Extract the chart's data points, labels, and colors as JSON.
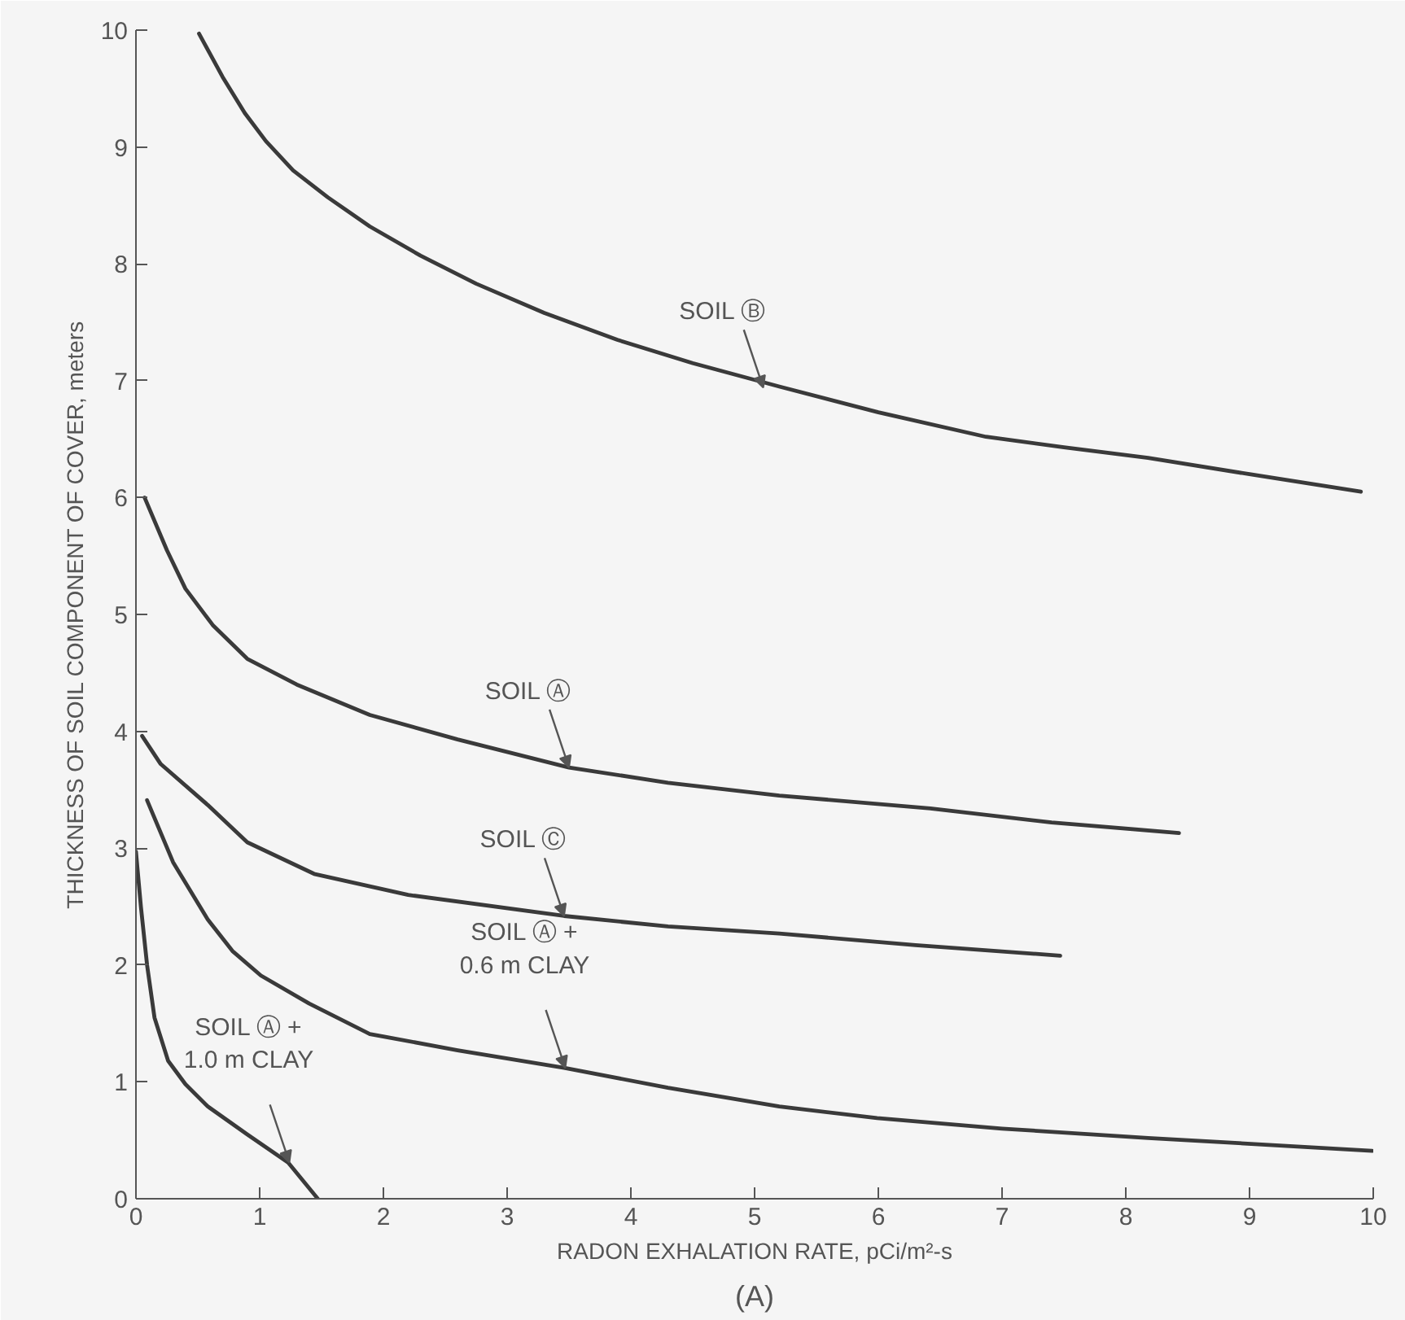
{
  "chart_data": {
    "type": "line",
    "xlabel": "RADON EXHALATION RATE, pCi/m²-s",
    "ylabel": "THICKNESS OF SOIL COMPONENT OF COVER, meters",
    "xlim": [
      0,
      10
    ],
    "ylim": [
      0,
      10
    ],
    "xticks": [
      0,
      1,
      2,
      3,
      4,
      5,
      6,
      7,
      8,
      9,
      10
    ],
    "yticks": [
      0,
      1,
      2,
      3,
      4,
      5,
      6,
      7,
      8,
      9,
      10
    ],
    "grid": false,
    "marker": "none",
    "line_style": "solid",
    "series": [
      {
        "color": "#3a3a3a",
        "x": [
          0.51,
          0.7,
          0.88,
          1.05,
          1.27,
          1.55,
          1.89,
          2.3,
          2.75,
          3.3,
          3.89,
          4.5,
          5.2,
          6.0,
          6.87,
          7.5,
          8.18,
          9.0,
          9.9
        ],
        "values": [
          9.97,
          9.6,
          9.29,
          9.05,
          8.8,
          8.57,
          8.32,
          8.07,
          7.83,
          7.58,
          7.35,
          7.15,
          6.95,
          6.73,
          6.52,
          6.43,
          6.34,
          6.2,
          6.05
        ]
      },
      {
        "color": "#3a3a3a",
        "x": [
          0.07,
          0.25,
          0.4,
          0.62,
          0.9,
          1.3,
          1.89,
          2.6,
          3.5,
          4.3,
          5.2,
          6.42,
          7.4,
          8.43
        ],
        "values": [
          6.0,
          5.55,
          5.22,
          4.91,
          4.62,
          4.4,
          4.14,
          3.93,
          3.69,
          3.56,
          3.45,
          3.34,
          3.22,
          3.13
        ]
      },
      {
        "color": "#3a3a3a",
        "x": [
          0.05,
          0.2,
          0.58,
          0.9,
          1.44,
          2.2,
          3.46,
          4.3,
          5.2,
          6.3,
          7.47
        ],
        "values": [
          3.96,
          3.72,
          3.37,
          3.05,
          2.78,
          2.6,
          2.42,
          2.33,
          2.27,
          2.17,
          2.08
        ]
      },
      {
        "color": "#3a3a3a",
        "x": [
          0.09,
          0.3,
          0.58,
          0.78,
          1.01,
          1.4,
          1.89,
          2.6,
          3.46,
          4.3,
          5.2,
          5.99,
          7.0,
          8.18,
          9.99
        ],
        "values": [
          3.41,
          2.88,
          2.39,
          2.12,
          1.91,
          1.67,
          1.41,
          1.27,
          1.12,
          0.95,
          0.79,
          0.69,
          0.6,
          0.52,
          0.41
        ]
      },
      {
        "color": "#3a3a3a",
        "x": [
          0.0,
          0.04,
          0.09,
          0.15,
          0.26,
          0.4,
          0.58,
          0.9,
          1.23,
          1.47
        ],
        "values": [
          2.97,
          2.5,
          2.0,
          1.55,
          1.18,
          0.98,
          0.79,
          0.55,
          0.31,
          0.0
        ]
      }
    ],
    "annotations": [
      {
        "text": "SOIL Ⓑ",
        "x": 5.07,
        "y": 6.94
      },
      {
        "text": "SOIL Ⓐ",
        "x": 3.5,
        "y": 3.69
      },
      {
        "text": "SOIL Ⓒ",
        "x": 3.46,
        "y": 2.42
      },
      {
        "text": "SOIL Ⓐ +\n0.6 m CLAY",
        "x": 3.47,
        "y": 1.12
      },
      {
        "text": "SOIL Ⓐ +\n1.0 m CLAY",
        "x": 1.24,
        "y": 0.31
      },
      "(A)"
    ]
  }
}
